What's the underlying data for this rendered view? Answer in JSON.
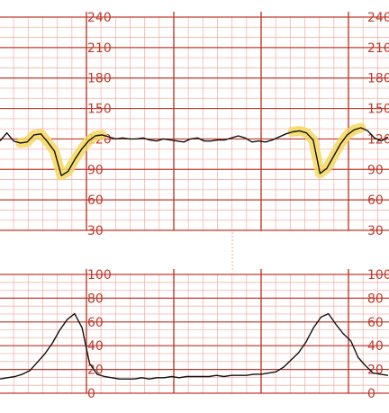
{
  "chart_data": [
    {
      "type": "line",
      "title": "",
      "ylim": [
        30,
        240
      ],
      "yticks": [
        240,
        210,
        180,
        150,
        120,
        90,
        60,
        30
      ],
      "tick_labels": [
        "240",
        "210",
        "180",
        "150",
        "120",
        "90",
        "60",
        "30"
      ],
      "grid": true,
      "highlight_color": "#f6d860",
      "series": [
        {
          "values": [
            118,
            126,
            118,
            116,
            117,
            124,
            125,
            117,
            108,
            84,
            88,
            100,
            110,
            118,
            123,
            124,
            122,
            120,
            121,
            120,
            120,
            121,
            119,
            118,
            120,
            119,
            118,
            117,
            120,
            121,
            118,
            118,
            119,
            119,
            121,
            123,
            121,
            117,
            118,
            117,
            119,
            122,
            125,
            127,
            128,
            126,
            119,
            86,
            91,
            103,
            115,
            124,
            129,
            131,
            128,
            121,
            118,
            122
          ]
        }
      ],
      "highlights": [
        [
          3,
          15
        ],
        [
          43,
          53
        ]
      ]
    },
    {
      "type": "line",
      "title": "",
      "ylim": [
        0,
        100
      ],
      "yticks": [
        100,
        80,
        60,
        40,
        20,
        0
      ],
      "tick_labels": [
        "100",
        "80",
        "60",
        "40",
        "20",
        "0"
      ],
      "grid": true,
      "series": [
        {
          "values": [
            12,
            13,
            14,
            16,
            19,
            26,
            33,
            42,
            53,
            62,
            67,
            55,
            25,
            16,
            14,
            13,
            12,
            12,
            12,
            13,
            12,
            13,
            13,
            14,
            13,
            14,
            14,
            14,
            14,
            15,
            14,
            15,
            15,
            15,
            16,
            16,
            17,
            18,
            22,
            28,
            34,
            43,
            55,
            64,
            67,
            58,
            50,
            44,
            30,
            23,
            17,
            16,
            15
          ]
        }
      ]
    }
  ],
  "colors": {
    "grid_major": "#c0392b",
    "grid_minor": "#f2b5ac",
    "trace": "#111111",
    "divider": "#e3a99f"
  }
}
